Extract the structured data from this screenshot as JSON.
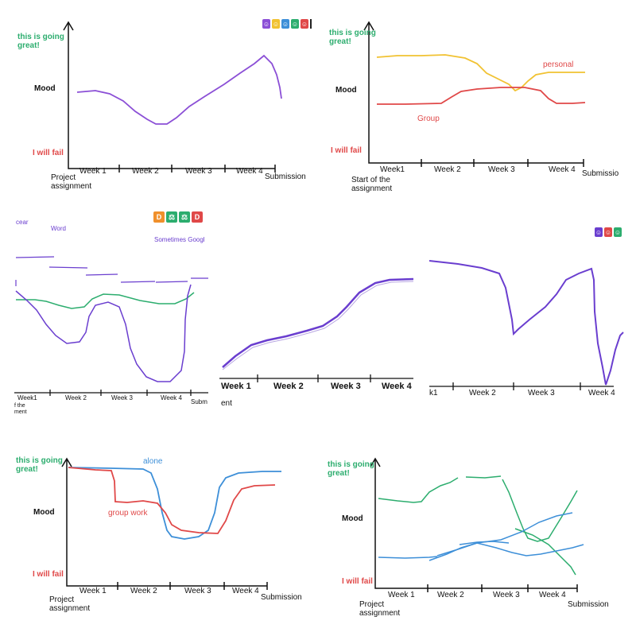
{
  "labels": {
    "good": "this is going great!",
    "good_l1": "this is going",
    "good_l2": "great!",
    "mood": "Mood",
    "fail": "I will fail",
    "submission": "Submission",
    "submission_cut": "Submissio",
    "submission_cut2": "Subm",
    "project_l1": "Project",
    "project_l2": "assignment",
    "start_l1": "Start of the",
    "start_l2": "assignment",
    "start_cut_l1": "f the",
    "start_cut_l2": "ment",
    "start_cut3": "ent",
    "week1": "Week 1",
    "week1b": "Week1",
    "week1_cut": "k1",
    "week2": "Week 2",
    "week3": "Week 3",
    "week4": "Week 4"
  },
  "annotations": {
    "personal": "personal",
    "group": "Group",
    "alone": "alone",
    "group_work": "group work",
    "clear": "cear",
    "word": "Word",
    "sometimes_google": "Sometimes Googl"
  },
  "colors": {
    "purple": "#8b4fd6",
    "purple_dark": "#6a3ecf",
    "yellow": "#f1c232",
    "red": "#e04848",
    "green": "#2cad6e",
    "blue": "#3d8fd8",
    "orange": "#f0902c",
    "axis": "#111111"
  },
  "badges": {
    "panel1": [
      {
        "glyph": "☺",
        "color": "#8b4fd6"
      },
      {
        "glyph": "☺",
        "color": "#f1c232"
      },
      {
        "glyph": "☺",
        "color": "#3d8fd8"
      },
      {
        "glyph": "☺",
        "color": "#2cad6e"
      },
      {
        "glyph": "☺",
        "color": "#e04848"
      }
    ],
    "panel3": [
      {
        "glyph": "D",
        "color": "#f0902c"
      },
      {
        "glyph": "⚖",
        "color": "#2cad6e"
      },
      {
        "glyph": "⚖",
        "color": "#2cad6e"
      },
      {
        "glyph": "D",
        "color": "#e04848"
      }
    ],
    "panel5": [
      {
        "glyph": "☺",
        "color": "#6a3ecf"
      },
      {
        "glyph": "☺",
        "color": "#e04848"
      },
      {
        "glyph": "☺",
        "color": "#2cad6e"
      }
    ]
  }
}
